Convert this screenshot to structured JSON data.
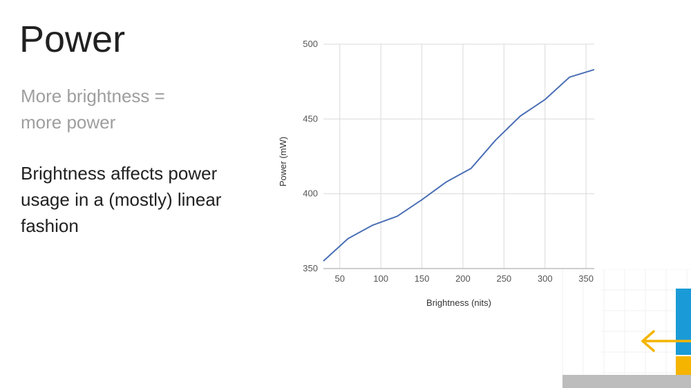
{
  "slide": {
    "title": "Power",
    "subtitle_lines": [
      "More brightness =",
      "more power"
    ],
    "body_lines": [
      "Brightness affects power",
      "usage in a (mostly) linear",
      "fashion"
    ]
  },
  "colors": {
    "line": "#4a6fb5",
    "grid": "#d9d9d9",
    "deco_blue": "#1a9bd7",
    "deco_yellow": "#f4b400",
    "deco_gray": "#bdbdbd"
  },
  "chart_data": {
    "type": "line",
    "xlabel": "Brightness (nits)",
    "ylabel": "Power (mW)",
    "xlim": [
      30,
      360
    ],
    "ylim": [
      350,
      500
    ],
    "x_ticks": [
      50,
      100,
      150,
      200,
      250,
      300,
      350
    ],
    "y_ticks": [
      350,
      400,
      450,
      500
    ],
    "grid": true,
    "series": [
      {
        "x": [
          30,
          60,
          90,
          120,
          150,
          180,
          210,
          240,
          270,
          300,
          330,
          360
        ],
        "values": [
          355,
          370,
          379,
          385,
          396,
          408,
          417,
          436,
          452,
          463,
          478,
          483
        ]
      }
    ]
  }
}
